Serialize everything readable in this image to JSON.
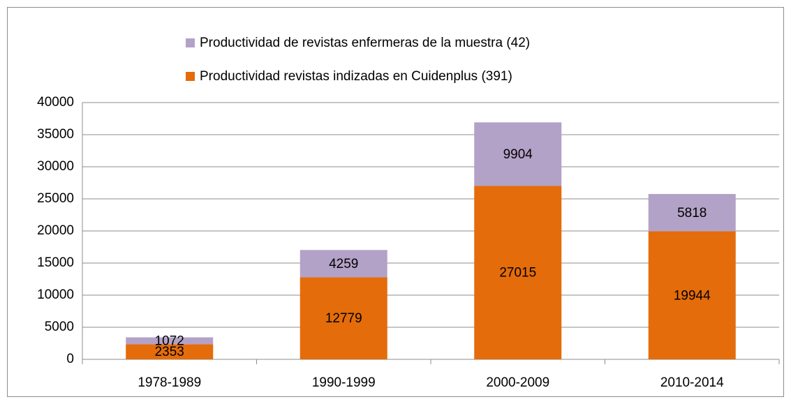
{
  "chart_data": {
    "type": "stacked_bar",
    "categories": [
      "1978-1989",
      "1990-1999",
      "2000-2009",
      "2010-2014"
    ],
    "series": [
      {
        "name": "Productividad revistas indizadas en Cuidenplus (391)",
        "color": "#e46c0a",
        "values": [
          2353,
          12779,
          27015,
          19944
        ]
      },
      {
        "name": "Productividad de revistas enfermeras de la muestra (42)",
        "color": "#b3a2c7",
        "values": [
          1072,
          4259,
          9904,
          5818
        ]
      }
    ],
    "ylim": [
      0,
      40000
    ],
    "yticks": [
      0,
      5000,
      10000,
      15000,
      20000,
      25000,
      30000,
      35000,
      40000
    ],
    "grid": true,
    "legend": "top"
  }
}
